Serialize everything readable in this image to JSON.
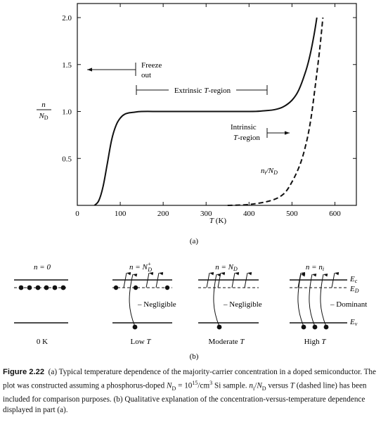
{
  "chart_data": {
    "type": "line",
    "title": "",
    "xlabel": "T (K)",
    "ylabel_num": "n",
    "ylabel_den": "N_D",
    "xlim": [
      0,
      650
    ],
    "ylim": [
      0,
      2.15
    ],
    "xticks": [
      0,
      100,
      200,
      300,
      400,
      500,
      600
    ],
    "yticks": [
      0.5,
      1.0,
      1.5,
      2.0
    ],
    "xtick_labels": [
      "0",
      "100",
      "200",
      "300",
      "400",
      "500",
      "600"
    ],
    "ytick_labels": [
      "0.5",
      "1.0",
      "1.5",
      "2.0"
    ],
    "series": [
      {
        "name": "",
        "style": "solid",
        "x": [
          40,
          50,
          60,
          70,
          80,
          90,
          100,
          110,
          120,
          130,
          150,
          200,
          300,
          400,
          430,
          460,
          480,
          500,
          515,
          530,
          540,
          550,
          558
        ],
        "y": [
          0.0,
          0.05,
          0.2,
          0.45,
          0.7,
          0.85,
          0.93,
          0.97,
          0.985,
          0.99,
          1.0,
          1.0,
          1.0,
          1.0,
          1.005,
          1.02,
          1.05,
          1.12,
          1.22,
          1.4,
          1.56,
          1.78,
          2.0
        ]
      },
      {
        "name": "n_i/N_D",
        "style": "dashed",
        "x": [
          350,
          400,
          450,
          480,
          500,
          520,
          535,
          545,
          555,
          565,
          572
        ],
        "y": [
          0.0,
          0.01,
          0.05,
          0.12,
          0.25,
          0.45,
          0.7,
          0.95,
          1.3,
          1.68,
          2.0
        ]
      }
    ],
    "annotations": {
      "freeze": [
        "Freeze",
        "out"
      ],
      "extrinsic": "Extrinsic T-region",
      "intrinsic": [
        "Intrinsic",
        "T-region"
      ],
      "ni_label": "n_i/N_D"
    },
    "subfig_label": "(a)"
  },
  "band_diagram": {
    "panels": [
      {
        "title": "n = 0",
        "caption": "0 K",
        "note": ""
      },
      {
        "title": "n = N_D^+",
        "caption": "Low T",
        "note": "– Negligible"
      },
      {
        "title": "n = N_D",
        "caption": "Moderate T",
        "note": "– Negligible"
      },
      {
        "title": "n = n_i",
        "caption": "High T",
        "note": "– Dominant"
      }
    ],
    "levels": {
      "ec": "E_c",
      "ed": "E_D",
      "ev": "E_v"
    },
    "subfig_label": "(b)"
  },
  "caption": {
    "label": "Figure 2.22",
    "text": "(a) Typical temperature dependence of the majority-carrier concentration in a doped semiconductor. The plot was constructed assuming a phosphorus-doped N_D = 10^15/cm^3 Si sample. n_i/N_D versus T (dashed line) has been included for comparison purposes. (b) Qualitative explanation of the concentration-versus-temperature dependence displayed in part (a)."
  }
}
